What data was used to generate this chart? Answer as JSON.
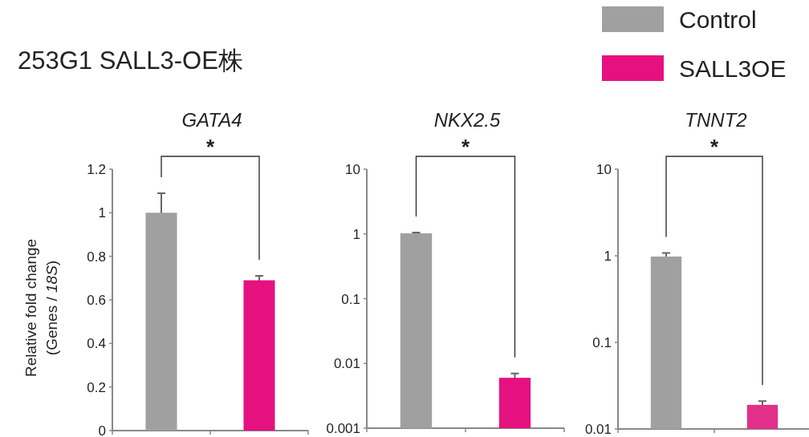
{
  "chart_data": [
    {
      "type": "bar",
      "title": "GATA4",
      "ylabel": "Relative fold change\n(Genes / *18S*)",
      "annotations": [
        "253G1 SALL3-OE株",
        "*"
      ],
      "categories": [
        null,
        null
      ],
      "legend": "top right",
      "series": [
        {
          "name": "Control",
          "color": "#a0a0a0",
          "values": [
            1.0,
            null
          ],
          "errors": [
            0.09,
            null
          ]
        },
        {
          "name": "SALL3OE",
          "color": "#e5117f",
          "values": [
            null,
            0.69
          ],
          "errors": [
            null,
            0.02
          ]
        }
      ],
      "ylim": [
        0,
        1.2
      ],
      "yticks": [
        0,
        0.2,
        0.4,
        0.6,
        0.8,
        1,
        1.2
      ]
    },
    {
      "type": "bar",
      "title": "NKX2.5",
      "annotations": [
        "*"
      ],
      "categories": [
        null,
        null
      ],
      "log": true,
      "series": [
        {
          "color": "#a0a0a0",
          "values": [
            1.02,
            null
          ],
          "errors": [
            0.03,
            null
          ]
        },
        {
          "color": "#e5117f",
          "values": [
            null,
            0.006
          ],
          "errors": [
            null,
            0.001
          ]
        }
      ],
      "ylim": [
        0.001,
        10
      ],
      "yticks": [
        0.001,
        0.01,
        0.1,
        1,
        10
      ]
    },
    {
      "type": "bar",
      "title": "TNNT2",
      "annotations": [
        "*"
      ],
      "categories": [
        null,
        null
      ],
      "log": true,
      "series": [
        {
          "color": "#a0a0a0",
          "values": [
            0.98,
            null
          ],
          "errors": [
            0.1,
            null
          ]
        },
        {
          "color": "#e3308a",
          "values": [
            null,
            0.019
          ],
          "errors": [
            null,
            0.002
          ]
        }
      ],
      "ylim": [
        0.01,
        10
      ],
      "yticks": [
        0.01,
        0.1,
        1,
        10
      ]
    }
  ]
}
